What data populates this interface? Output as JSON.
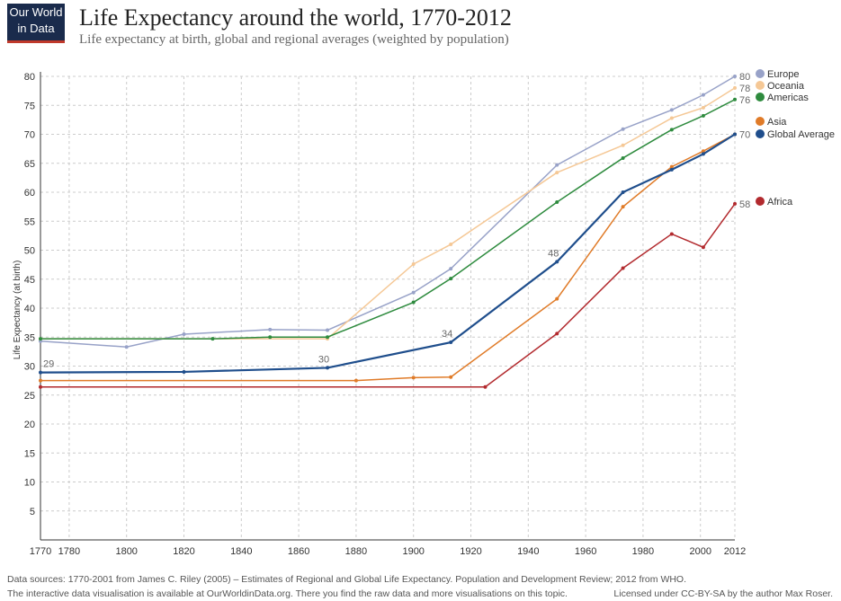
{
  "logo": {
    "line1": "Our World",
    "line2": "in Data"
  },
  "chart_data": {
    "type": "line",
    "title": "Life Expectancy around the world, 1770-2012",
    "subtitle": "Life expectancy at birth, global and regional averages (weighted by population)",
    "y_label": "Life Expectancy (at birth)",
    "xlim": [
      1770,
      2012
    ],
    "xticks": [
      1770,
      1780,
      1800,
      1820,
      1840,
      1860,
      1880,
      1900,
      1920,
      1940,
      1960,
      1980,
      2000,
      2012
    ],
    "ylim": [
      0,
      80
    ],
    "yticks": [
      5,
      10,
      15,
      20,
      25,
      30,
      35,
      40,
      45,
      50,
      55,
      60,
      65,
      70,
      75,
      80
    ],
    "grid": true,
    "legend": "right",
    "series": [
      {
        "name": "Europe",
        "color": "#98a2c8",
        "x": [
          1770,
          1800,
          1820,
          1850,
          1870,
          1900,
          1913,
          1950,
          1973,
          1990,
          2001,
          2012
        ],
        "values": [
          34.3,
          33.3,
          35.5,
          36.3,
          36.2,
          42.7,
          46.8,
          64.7,
          70.9,
          74.2,
          76.8,
          80
        ],
        "value_labels": [
          null,
          null,
          null,
          null,
          null,
          null,
          null,
          null,
          null,
          null,
          null,
          "80"
        ]
      },
      {
        "name": "Oceania",
        "color": "#f5c896",
        "x": [
          1770,
          1870,
          1900,
          1913,
          1950,
          1973,
          1990,
          2001,
          2012
        ],
        "values": [
          34.7,
          34.7,
          47.6,
          51,
          63.4,
          68.1,
          72.8,
          74.6,
          78
        ],
        "value_labels": [
          null,
          null,
          null,
          null,
          null,
          null,
          null,
          null,
          "78"
        ]
      },
      {
        "name": "Americas",
        "color": "#2e8b3e",
        "x": [
          1770,
          1830,
          1850,
          1870,
          1900,
          1913,
          1950,
          1973,
          1990,
          2001,
          2012
        ],
        "values": [
          34.7,
          34.7,
          35,
          35,
          41,
          45.1,
          58.3,
          65.9,
          70.8,
          73.2,
          76
        ],
        "value_labels": [
          null,
          null,
          null,
          null,
          null,
          null,
          null,
          null,
          null,
          null,
          "76"
        ]
      },
      {
        "name": "Asia",
        "color": "#e07b28",
        "x": [
          1770,
          1880,
          1900,
          1913,
          1950,
          1973,
          1990,
          2001,
          2012
        ],
        "values": [
          27.5,
          27.5,
          28,
          28.1,
          41.6,
          57.5,
          64.4,
          67.1,
          70
        ]
      },
      {
        "name": "Global Average",
        "color": "#1f4e8c",
        "x": [
          1770,
          1820,
          1870,
          1913,
          1950,
          1973,
          1990,
          2001,
          2012
        ],
        "values": [
          28.9,
          29,
          29.7,
          34.1,
          48,
          60,
          63.9,
          66.6,
          70
        ],
        "value_labels": [
          "29",
          null,
          "30",
          "34",
          "48",
          null,
          null,
          null,
          "70"
        ]
      },
      {
        "name": "Africa",
        "color": "#b22a2e",
        "x": [
          1770,
          1925,
          1950,
          1973,
          1990,
          2001,
          2012
        ],
        "values": [
          26.4,
          26.4,
          35.6,
          46.9,
          52.8,
          50.5,
          58
        ],
        "value_labels": [
          null,
          null,
          null,
          null,
          null,
          null,
          "58"
        ]
      }
    ]
  },
  "footer": {
    "sources": "Data sources: 1770-2001 from James C. Riley (2005) – Estimates of Regional and Global Life Expectancy. Population and Development Review; 2012 from WHO.",
    "interactive": "The interactive data visualisation is available at OurWorldinData.org. There you find the raw data and more visualisations on this topic.",
    "license": "Licensed under CC-BY-SA by the author Max Roser."
  }
}
